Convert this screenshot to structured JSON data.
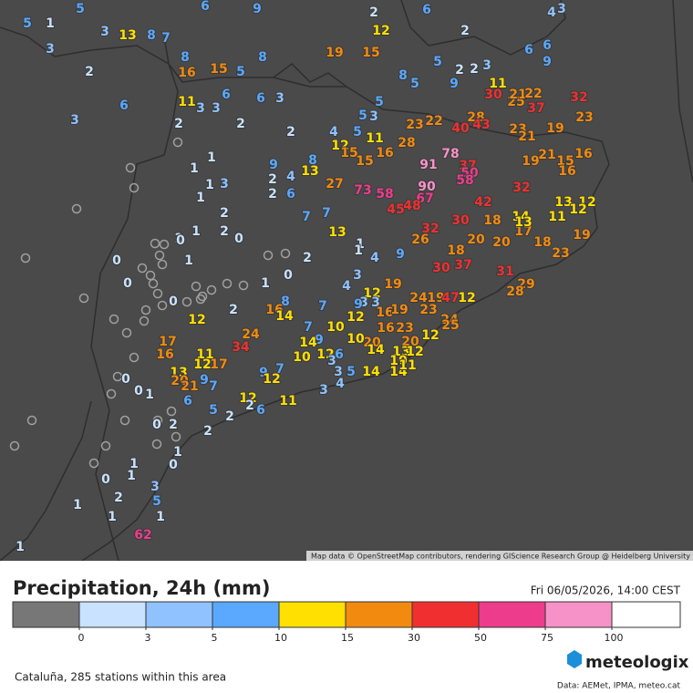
{
  "map": {
    "attribution": "Map data © OpenStreetMap contributors, rendering GIScience Research Group @ Heidelberg University",
    "stations": [
      5,
      1,
      5,
      3,
      3,
      13,
      8,
      7,
      6,
      9,
      2,
      6,
      4,
      3,
      2,
      8,
      16,
      15,
      5,
      8,
      19,
      15,
      12,
      2,
      6,
      6,
      9,
      8,
      5,
      5,
      9,
      2,
      2,
      3,
      3,
      6,
      11,
      3,
      3,
      6,
      6,
      3,
      2,
      2,
      2,
      4,
      5,
      5,
      3,
      5,
      11,
      30,
      25,
      21,
      22,
      37,
      32,
      23,
      23,
      22,
      40,
      28,
      43,
      23,
      21,
      19,
      12,
      15,
      15,
      11,
      16,
      28,
      78,
      91,
      37,
      50,
      58,
      19,
      21,
      15,
      16,
      16,
      9,
      4,
      13,
      8,
      2,
      2,
      6,
      27,
      73,
      58,
      90,
      67,
      48,
      45,
      42,
      32,
      13,
      12,
      12,
      11,
      7,
      7,
      13,
      30,
      18,
      14,
      17,
      13,
      32,
      26,
      20,
      20,
      18,
      19,
      23,
      18,
      30,
      37,
      31,
      29,
      28,
      1,
      1,
      1,
      3,
      1,
      2,
      1,
      1,
      2,
      0,
      0,
      0,
      1,
      2,
      1,
      1,
      4,
      9,
      3,
      4,
      0,
      0,
      1,
      0,
      19,
      12,
      3,
      9,
      3,
      24,
      19,
      47,
      12,
      8,
      7,
      16,
      19,
      23,
      12,
      16,
      14,
      2,
      12,
      24,
      25,
      7,
      10,
      16,
      23,
      12,
      17,
      16,
      11,
      24,
      34,
      9,
      14,
      12,
      6,
      20,
      10,
      10,
      14,
      20,
      13,
      12,
      12,
      17,
      3,
      13,
      20,
      21,
      9,
      7,
      7,
      9,
      12,
      3,
      5,
      14,
      14,
      10,
      11,
      1,
      0,
      0,
      6,
      5,
      12,
      2,
      6,
      2,
      11,
      3,
      4,
      2,
      2,
      0,
      1,
      0,
      1,
      0,
      1,
      3,
      2,
      5,
      1,
      1,
      1,
      62,
      1
    ]
  },
  "legend": {
    "title": "Precipitation, 24h (mm)",
    "date": "Fri 06/05/2026, 14:00 CEST",
    "ticks": [
      0,
      3,
      5,
      10,
      15,
      30,
      50,
      75,
      100
    ],
    "colors": [
      "#777777",
      "#c8e2ff",
      "#8fc2ff",
      "#5aa8ff",
      "#ffe000",
      "#f28a10",
      "#f03030",
      "#ee3c8c",
      "#f792c8",
      "#ffffff"
    ]
  },
  "footer": {
    "region": "Cataluña, 285 stations within this area",
    "logo": "meteologix",
    "sources": "Data: AEMet, IPMA, meteo.cat"
  }
}
